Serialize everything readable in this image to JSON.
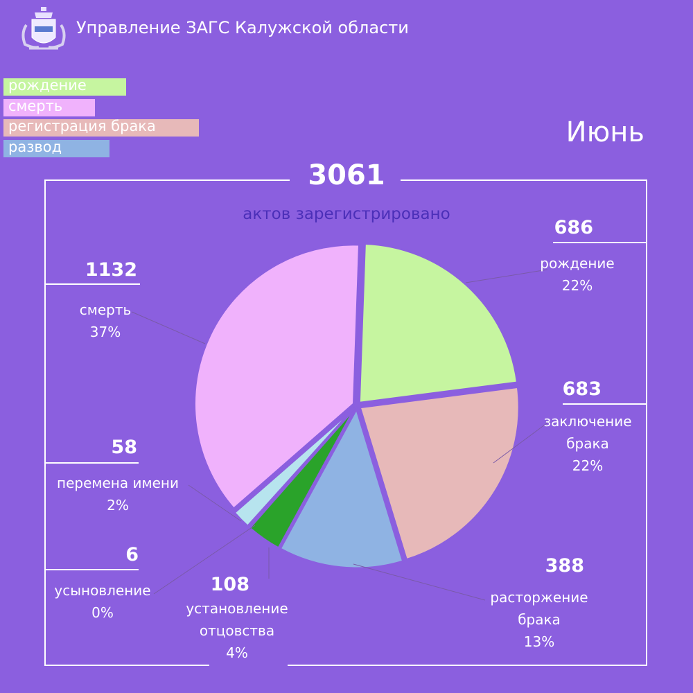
{
  "header": {
    "title": "Управление ЗАГС Калужской области",
    "emblem_icon": "coat-of-arms-icon"
  },
  "legend": [
    {
      "label": "рождение",
      "color": "#c6f5a0"
    },
    {
      "label": "смерть",
      "color": "#f0b2fc"
    },
    {
      "label": "регистрация брака",
      "color": "#e7b9b9"
    },
    {
      "label": "развод",
      "color": "#8fb3e3"
    }
  ],
  "month": "Июнь",
  "total": {
    "value": "3061",
    "caption": "актов зарегистрировано"
  },
  "chart_data": {
    "type": "pie",
    "total": 3061,
    "slices": [
      {
        "name": "рождение",
        "value": 686,
        "percent": "22%",
        "color": "#c6f5a0",
        "label_lines": [
          "рождение",
          "22%"
        ]
      },
      {
        "name": "заключение брака",
        "value": 683,
        "percent": "22%",
        "color": "#e7b9b9",
        "label_lines": [
          "заключение",
          "брака",
          "22%"
        ]
      },
      {
        "name": "расторжение брака",
        "value": 388,
        "percent": "13%",
        "color": "#8fb3e3",
        "label_lines": [
          "расторжение",
          "брака",
          "13%"
        ]
      },
      {
        "name": "установление отцовства",
        "value": 108,
        "percent": "4%",
        "color": "#2aa32a",
        "label_lines": [
          "установление",
          "отцовства",
          "4%"
        ]
      },
      {
        "name": "усыновление",
        "value": 6,
        "percent": "0%",
        "color": "#2b2b55",
        "label_lines": [
          "усыновление",
          "0%"
        ]
      },
      {
        "name": "перемена имени",
        "value": 58,
        "percent": "2%",
        "color": "#b7e4ee",
        "label_lines": [
          "перемена имени",
          "2%"
        ]
      },
      {
        "name": "смерть",
        "value": 1132,
        "percent": "37%",
        "color": "#f0b2fc",
        "label_lines": [
          "смерть",
          "37%"
        ]
      }
    ]
  }
}
